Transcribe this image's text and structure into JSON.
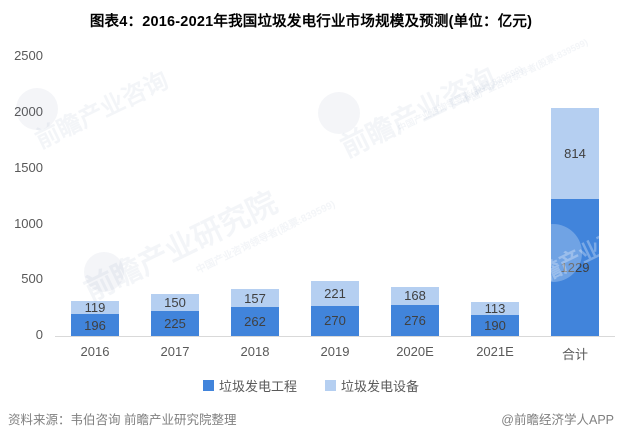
{
  "chart_data": {
    "type": "bar",
    "stacked": true,
    "title": "图表4：2016-2021年我国垃圾发电行业市场规模及预测(单位：亿元)",
    "categories": [
      "2016",
      "2017",
      "2018",
      "2019",
      "2020E",
      "2021E",
      "合计"
    ],
    "series": [
      {
        "name": "垃圾发电工程",
        "color": "#4184DB",
        "values": [
          196,
          225,
          262,
          270,
          276,
          190,
          1229
        ]
      },
      {
        "name": "垃圾发电设备",
        "color": "#B5CFF1",
        "values": [
          119,
          150,
          157,
          221,
          168,
          113,
          814
        ]
      }
    ],
    "ylim": [
      0,
      2500
    ],
    "yticks": [
      0,
      500,
      1000,
      1500,
      2000,
      2500
    ],
    "grid": false,
    "legend_position": "bottom",
    "value_labels": true
  },
  "footer": {
    "source": "资料来源：韦伯咨询 前瞻产业研究院整理",
    "credit": "@前瞻经济学人APP"
  },
  "watermarks": {
    "brand": "前瞻产业研究院",
    "brand_alt": "前瞻产业咨询",
    "tagline": "中国产业咨询领导者(股票:839599)"
  },
  "colors": {
    "axis_text": "#595959",
    "value_label": "#404040",
    "axis_line": "#D9D9D9",
    "footer_text": "#808080",
    "title_text": "#000000"
  }
}
